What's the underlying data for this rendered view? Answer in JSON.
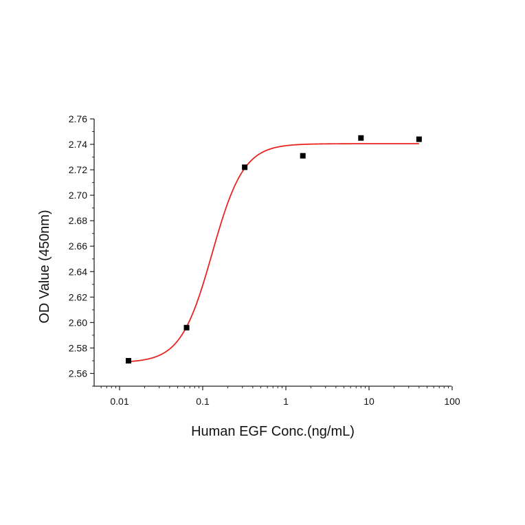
{
  "chart_data": {
    "type": "scatter",
    "title": "",
    "xlabel": "Human EGF Conc.(ng/mL)",
    "ylabel": "OD Value (450nm)",
    "x_scale": "log",
    "xlim": [
      0.005,
      100
    ],
    "ylim": [
      2.55,
      2.76
    ],
    "x_ticks": [
      0.01,
      0.1,
      1,
      10,
      100
    ],
    "x_tick_labels": [
      "0.01",
      "0.1",
      "1",
      "10",
      "100"
    ],
    "y_ticks": [
      2.56,
      2.58,
      2.6,
      2.62,
      2.64,
      2.66,
      2.68,
      2.7,
      2.72,
      2.74,
      2.76
    ],
    "y_tick_labels": [
      "2.56",
      "2.58",
      "2.60",
      "2.62",
      "2.64",
      "2.66",
      "2.68",
      "2.70",
      "2.72",
      "2.74",
      "2.76"
    ],
    "grid": false,
    "legend": "none",
    "series": [
      {
        "kind": "points",
        "marker": "square",
        "color": "#000000",
        "x": [
          0.0128,
          0.064,
          0.32,
          1.6,
          8,
          40
        ],
        "y": [
          2.57,
          2.596,
          2.722,
          2.731,
          2.745,
          2.744
        ]
      },
      {
        "kind": "fit",
        "color": "#e8231f",
        "model": "4PL",
        "bottom": 2.5685,
        "top": 2.7405,
        "ec50": 0.13,
        "hill": 2.3,
        "x_range": [
          0.0128,
          40
        ]
      }
    ]
  }
}
